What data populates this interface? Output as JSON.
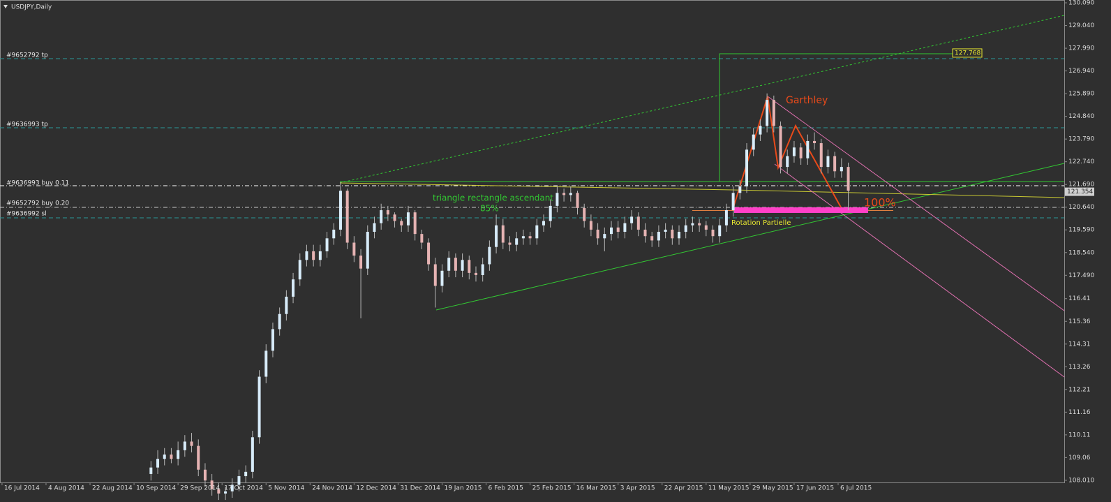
{
  "chart_data": {
    "type": "candlestick",
    "title": "USDJPY,Daily",
    "xlim": [
      -0.6,
      313.8
    ],
    "ylim": [
      107.91,
      130.22
    ],
    "xticks": [
      {
        "value": 0,
        "label": "16 Jul 2014"
      },
      {
        "value": 13,
        "label": "4 Aug 2014"
      },
      {
        "value": 26,
        "label": "22 Aug 2014"
      },
      {
        "value": 39,
        "label": "10 Sep 2014"
      },
      {
        "value": 52,
        "label": "29 Sep 2014"
      },
      {
        "value": 65,
        "label": "17 Oct 2014"
      },
      {
        "value": 78,
        "label": "5 Nov 2014"
      },
      {
        "value": 91,
        "label": "24 Nov 2014"
      },
      {
        "value": 104,
        "label": "12 Dec 2014"
      },
      {
        "value": 117,
        "label": "31 Dec 2014"
      },
      {
        "value": 130,
        "label": "19 Jan 2015"
      },
      {
        "value": 143,
        "label": "6 Feb 2015"
      },
      {
        "value": 156,
        "label": "25 Feb 2015"
      },
      {
        "value": 169,
        "label": "16 Mar 2015"
      },
      {
        "value": 182,
        "label": "3 Apr 2015"
      },
      {
        "value": 195,
        "label": "22 Apr 2015"
      },
      {
        "value": 208,
        "label": "11 May 2015"
      },
      {
        "value": 221,
        "label": "29 May 2015"
      },
      {
        "value": 234,
        "label": "17 Jun 2015"
      },
      {
        "value": 247,
        "label": "6 Jul 2015"
      }
    ],
    "yticks": [
      {
        "value": 130.09,
        "label": "130.090"
      },
      {
        "value": 129.04,
        "label": "129.040"
      },
      {
        "value": 127.99,
        "label": "127.990"
      },
      {
        "value": 126.94,
        "label": "126.940"
      },
      {
        "value": 125.89,
        "label": "125.890"
      },
      {
        "value": 124.84,
        "label": "124.840"
      },
      {
        "value": 123.79,
        "label": "123.790"
      },
      {
        "value": 122.74,
        "label": "122.740"
      },
      {
        "value": 121.69,
        "label": "121.690"
      },
      {
        "value": 120.64,
        "label": "120.640"
      },
      {
        "value": 119.59,
        "label": "119.590"
      },
      {
        "value": 118.54,
        "label": "118.540"
      },
      {
        "value": 117.49,
        "label": "117.490"
      },
      116.41,
      115.36,
      114.31,
      113.26,
      112.21,
      111.16,
      110.11,
      109.06,
      {
        "value": 108.01,
        "label": "108.010"
      }
    ],
    "up_color": "#d8ecfa",
    "down_color": "#e6b3b3",
    "wick_color": "#b8b8b8",
    "x": [
      44,
      46,
      48,
      50,
      52,
      54,
      56,
      58,
      60,
      62,
      64,
      66,
      68,
      70,
      72,
      74,
      76,
      78,
      80,
      82,
      84,
      86,
      88,
      90,
      92,
      94,
      96,
      98,
      100,
      102,
      104,
      106,
      108,
      110,
      112,
      114,
      116,
      118,
      120,
      122,
      124,
      126,
      128,
      130,
      132,
      134,
      136,
      138,
      140,
      142,
      144,
      146,
      148,
      150,
      152,
      154,
      156,
      158,
      160,
      162,
      164,
      166,
      168,
      170,
      172,
      174,
      176,
      178,
      180,
      182,
      184,
      186,
      188,
      190,
      192,
      194,
      196,
      198,
      200,
      202,
      204,
      206,
      208,
      210,
      212,
      214,
      216,
      218,
      220,
      222,
      224,
      226,
      228,
      230,
      232,
      234,
      236,
      238,
      240,
      242,
      244,
      246,
      248,
      250
    ],
    "open": [
      108.3,
      108.6,
      109.0,
      109.2,
      109.0,
      109.4,
      109.8,
      109.6,
      108.5,
      108.0,
      107.6,
      107.4,
      107.5,
      107.8,
      108.2,
      108.4,
      110.0,
      112.8,
      114.0,
      115.0,
      115.7,
      116.5,
      117.3,
      118.2,
      118.6,
      118.2,
      118.6,
      119.2,
      119.6,
      121.4,
      119.0,
      118.4,
      117.8,
      119.5,
      119.9,
      120.5,
      120.3,
      120.0,
      119.8,
      120.4,
      119.4,
      119.0,
      118.0,
      117.0,
      117.7,
      118.3,
      117.7,
      118.2,
      117.6,
      117.5,
      118.0,
      118.8,
      119.8,
      119.0,
      118.9,
      119.2,
      119.3,
      119.2,
      119.8,
      120.0,
      120.7,
      121.3,
      121.2,
      121.3,
      120.6,
      120.0,
      119.6,
      119.2,
      119.4,
      119.7,
      119.5,
      119.9,
      120.2,
      119.6,
      119.3,
      119.1,
      119.5,
      119.6,
      119.2,
      119.5,
      119.8,
      119.9,
      119.8,
      119.6,
      119.3,
      119.8,
      120.5,
      121.3,
      121.6,
      123.3,
      124.0,
      124.4,
      125.6,
      124.4,
      122.5,
      123.0,
      123.4,
      122.9,
      123.7,
      123.6,
      122.5,
      123.0,
      122.3,
      122.5
    ],
    "high": [
      108.9,
      109.4,
      109.5,
      109.5,
      109.8,
      110.1,
      110.2,
      109.9,
      108.8,
      108.3,
      107.9,
      107.7,
      108.1,
      108.5,
      108.7,
      110.3,
      113.1,
      114.3,
      115.3,
      116.0,
      116.8,
      117.6,
      118.5,
      118.9,
      118.9,
      118.9,
      119.5,
      119.9,
      121.8,
      121.5,
      119.3,
      118.7,
      119.8,
      120.2,
      120.8,
      120.7,
      120.4,
      120.1,
      120.7,
      120.5,
      119.6,
      119.2,
      118.3,
      118.0,
      118.6,
      118.5,
      118.5,
      118.4,
      117.9,
      118.3,
      119.1,
      120.3,
      120.1,
      119.3,
      119.5,
      119.6,
      119.5,
      120.1,
      120.3,
      121.0,
      121.6,
      121.5,
      121.6,
      121.4,
      120.8,
      120.3,
      119.9,
      119.7,
      120.0,
      120.0,
      120.2,
      120.5,
      120.4,
      119.9,
      119.5,
      119.8,
      119.9,
      119.8,
      119.8,
      120.1,
      120.2,
      120.1,
      120.0,
      119.8,
      120.1,
      120.8,
      121.6,
      121.9,
      123.6,
      124.3,
      124.7,
      125.9,
      125.8,
      124.6,
      123.3,
      123.7,
      123.6,
      124.0,
      124.1,
      123.8,
      123.3,
      123.2,
      122.9,
      122.7
    ],
    "low": [
      108.0,
      108.3,
      108.7,
      108.8,
      108.7,
      109.1,
      109.3,
      108.2,
      107.7,
      107.3,
      107.1,
      107.1,
      107.2,
      107.5,
      107.9,
      108.1,
      109.7,
      112.5,
      113.7,
      114.7,
      115.4,
      116.2,
      117.0,
      117.9,
      117.9,
      117.9,
      118.3,
      118.9,
      119.3,
      118.7,
      118.1,
      115.5,
      117.5,
      119.2,
      119.6,
      120.0,
      119.7,
      119.5,
      119.5,
      119.1,
      118.7,
      117.7,
      116.0,
      116.7,
      117.4,
      117.4,
      117.4,
      117.3,
      117.2,
      117.2,
      117.7,
      118.5,
      118.7,
      118.6,
      118.6,
      118.9,
      118.9,
      118.9,
      119.5,
      119.7,
      120.4,
      120.9,
      120.9,
      120.3,
      119.7,
      119.3,
      118.9,
      118.6,
      119.1,
      119.2,
      119.2,
      119.6,
      119.3,
      119.0,
      118.8,
      118.8,
      119.2,
      118.9,
      118.9,
      119.2,
      119.5,
      119.5,
      119.3,
      119.0,
      119.0,
      119.5,
      120.2,
      121.0,
      121.3,
      123.0,
      123.7,
      124.1,
      124.1,
      122.2,
      122.2,
      122.7,
      122.6,
      122.6,
      123.3,
      122.2,
      122.2,
      122.0,
      122.0,
      120.5
    ],
    "close": [
      108.6,
      109.0,
      109.2,
      109.0,
      109.4,
      109.8,
      109.6,
      108.5,
      108.0,
      107.6,
      107.4,
      107.5,
      107.8,
      108.2,
      108.4,
      110.0,
      112.8,
      114.0,
      115.0,
      115.7,
      116.5,
      117.3,
      118.2,
      118.6,
      118.2,
      118.6,
      119.2,
      119.6,
      121.4,
      119.0,
      118.4,
      117.8,
      119.5,
      119.9,
      120.5,
      120.3,
      120.0,
      119.8,
      120.4,
      119.4,
      119.0,
      118.0,
      117.0,
      117.7,
      118.3,
      117.7,
      118.2,
      117.6,
      117.5,
      118.0,
      118.8,
      119.8,
      119.0,
      118.9,
      119.2,
      119.3,
      119.2,
      119.8,
      120.0,
      120.7,
      121.3,
      121.2,
      121.3,
      120.6,
      120.0,
      119.6,
      119.2,
      119.4,
      119.7,
      119.5,
      119.9,
      120.2,
      119.6,
      119.3,
      119.1,
      119.5,
      119.6,
      119.2,
      119.5,
      119.8,
      119.9,
      119.8,
      119.6,
      119.3,
      119.8,
      120.5,
      121.3,
      121.6,
      123.3,
      124.0,
      124.4,
      125.6,
      124.4,
      122.5,
      123.0,
      123.4,
      122.9,
      123.7,
      123.6,
      122.5,
      123.0,
      122.3,
      122.5,
      121.4
    ],
    "tp_price": 127.768,
    "last_price": 121.354,
    "orders": [
      "#9652792 tp",
      "#9636993 tp",
      "#9636993 buy 0.11",
      "#9652792 buy 0.20",
      "#9636992 sl"
    ],
    "annotations": [
      "triangle rectangle ascendant",
      "85%",
      "Rotation Partielle",
      "Garthley",
      "100%"
    ]
  }
}
